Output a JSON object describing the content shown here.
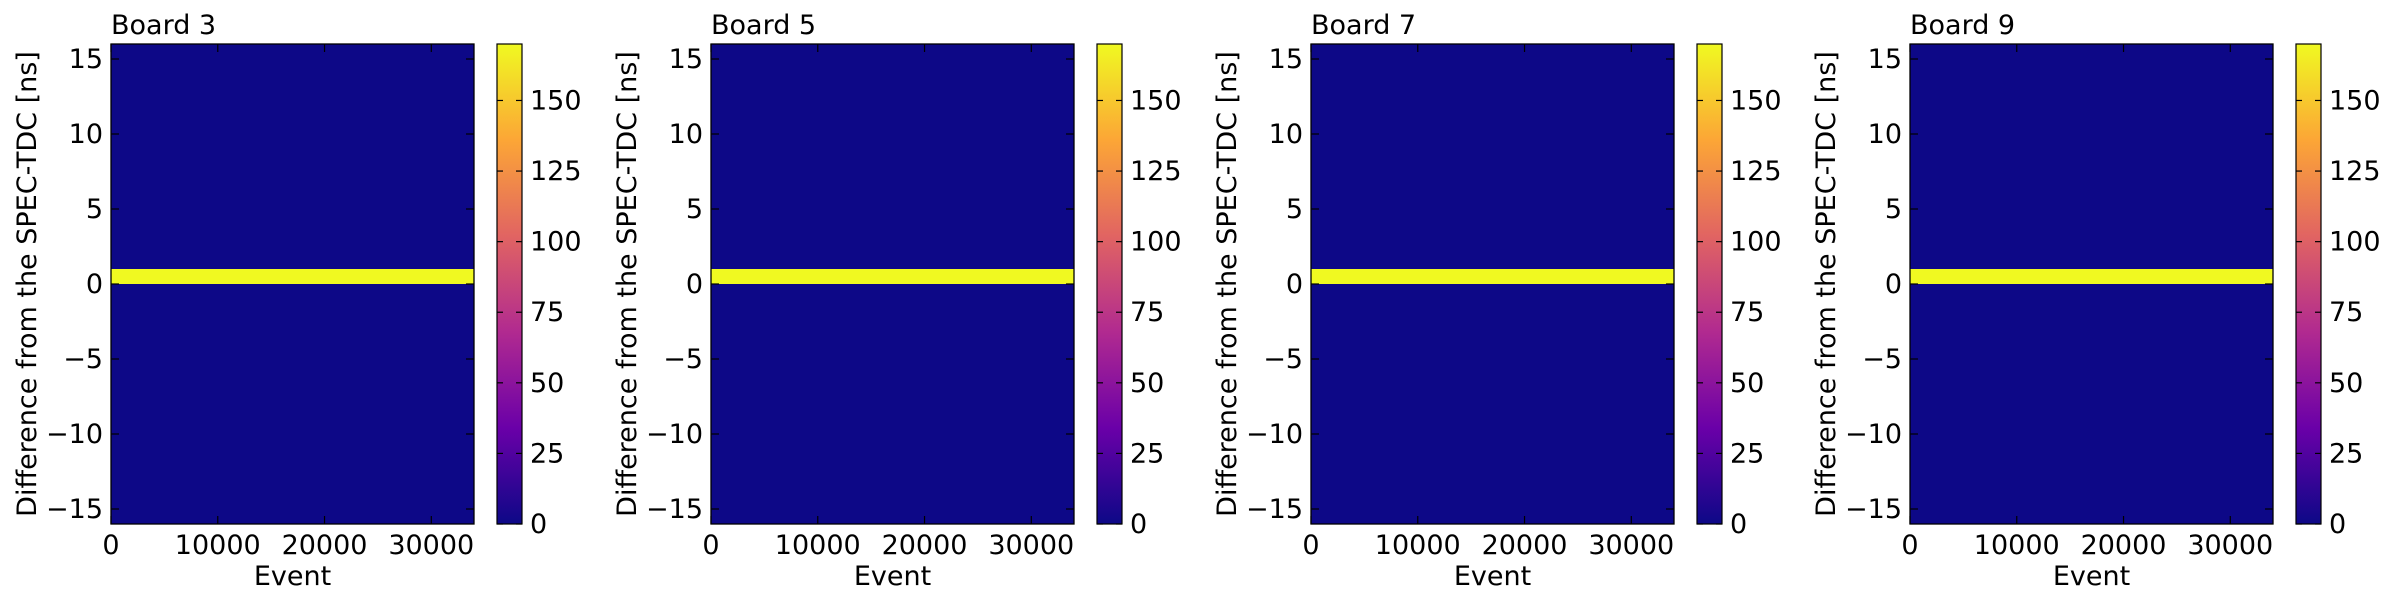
{
  "figure": {
    "xlabel": "Event",
    "ylabel": "Difference from the SPEC-TDC [ns]"
  },
  "chart_data": [
    {
      "type": "heatmap",
      "title": "Board 3",
      "xlabel": "Event",
      "ylabel": "Difference from the SPEC-TDC [ns]",
      "xlim": [
        0,
        34000
      ],
      "ylim": [
        -16,
        16
      ],
      "xticks": [
        0,
        10000,
        20000,
        30000
      ],
      "yticks": [
        -15,
        -10,
        -5,
        0,
        5,
        10,
        15
      ],
      "background_value": 0,
      "band": {
        "x_range": [
          0,
          34000
        ],
        "y_range": [
          0,
          1
        ],
        "value": 170
      },
      "colorbar": {
        "range": [
          0,
          170
        ],
        "ticks": [
          0,
          25,
          50,
          75,
          100,
          125,
          150
        ],
        "colormap": "plasma"
      }
    },
    {
      "type": "heatmap",
      "title": "Board 5",
      "xlabel": "Event",
      "ylabel": "Difference from the SPEC-TDC [ns]",
      "xlim": [
        0,
        34000
      ],
      "ylim": [
        -16,
        16
      ],
      "xticks": [
        0,
        10000,
        20000,
        30000
      ],
      "yticks": [
        -15,
        -10,
        -5,
        0,
        5,
        10,
        15
      ],
      "background_value": 0,
      "band": {
        "x_range": [
          0,
          34000
        ],
        "y_range": [
          0,
          1
        ],
        "value": 170
      },
      "colorbar": {
        "range": [
          0,
          170
        ],
        "ticks": [
          0,
          25,
          50,
          75,
          100,
          125,
          150
        ],
        "colormap": "plasma"
      }
    },
    {
      "type": "heatmap",
      "title": "Board 7",
      "xlabel": "Event",
      "ylabel": "Difference from the SPEC-TDC [ns]",
      "xlim": [
        0,
        34000
      ],
      "ylim": [
        -16,
        16
      ],
      "xticks": [
        0,
        10000,
        20000,
        30000
      ],
      "yticks": [
        -15,
        -10,
        -5,
        0,
        5,
        10,
        15
      ],
      "background_value": 0,
      "band": {
        "x_range": [
          0,
          34000
        ],
        "y_range": [
          0,
          1
        ],
        "value": 170
      },
      "colorbar": {
        "range": [
          0,
          170
        ],
        "ticks": [
          0,
          25,
          50,
          75,
          100,
          125,
          150
        ],
        "colormap": "plasma"
      }
    },
    {
      "type": "heatmap",
      "title": "Board 9",
      "xlabel": "Event",
      "ylabel": "Difference from the SPEC-TDC [ns]",
      "xlim": [
        0,
        34000
      ],
      "ylim": [
        -16,
        16
      ],
      "xticks": [
        0,
        10000,
        20000,
        30000
      ],
      "yticks": [
        -15,
        -10,
        -5,
        0,
        5,
        10,
        15
      ],
      "background_value": 0,
      "band": {
        "x_range": [
          0,
          34000
        ],
        "y_range": [
          0,
          1
        ],
        "value": 170
      },
      "colorbar": {
        "range": [
          0,
          170
        ],
        "ticks": [
          0,
          25,
          50,
          75,
          100,
          125,
          150
        ],
        "colormap": "plasma"
      }
    }
  ],
  "colors": {
    "plasma_low": "#0d0887",
    "plasma_mid1": "#6a00a8",
    "plasma_mid2": "#b12a90",
    "plasma_mid3": "#e16462",
    "plasma_mid4": "#fca636",
    "plasma_high": "#f0f921"
  }
}
